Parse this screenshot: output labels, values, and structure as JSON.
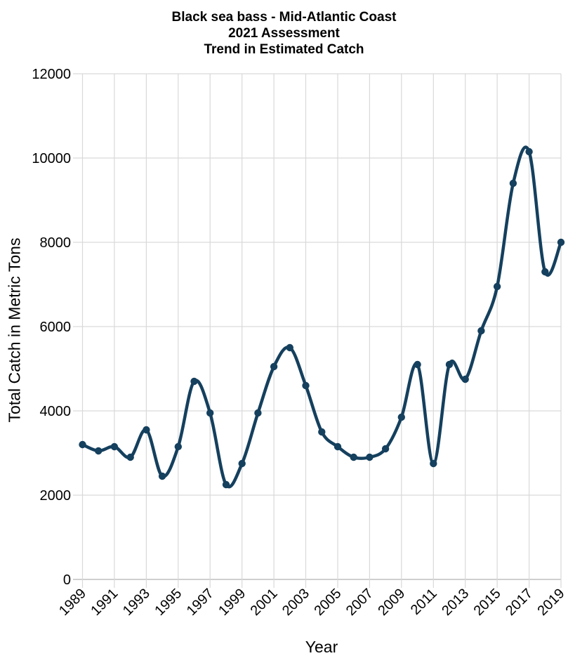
{
  "chart_data": {
    "type": "line",
    "title_lines": [
      "Black sea bass - Mid-Atlantic Coast",
      "2021 Assessment",
      "Trend in Estimated Catch"
    ],
    "xlabel": "Year",
    "ylabel": "Total Catch in Metric Tons",
    "x": [
      1989,
      1990,
      1991,
      1992,
      1993,
      1994,
      1995,
      1996,
      1997,
      1998,
      1999,
      2000,
      2001,
      2002,
      2003,
      2004,
      2005,
      2006,
      2007,
      2008,
      2009,
      2010,
      2011,
      2012,
      2013,
      2014,
      2015,
      2016,
      2017,
      2018,
      2019
    ],
    "values": [
      3200,
      3050,
      3150,
      2900,
      3550,
      2450,
      3150,
      4700,
      3950,
      2250,
      2750,
      3950,
      5050,
      5500,
      4600,
      3500,
      3150,
      2900,
      2900,
      3100,
      3850,
      5100,
      2750,
      5100,
      4750,
      5900,
      6950,
      9400,
      10150,
      7300,
      8000
    ],
    "ylim": [
      0,
      12000
    ],
    "y_ticks": [
      0,
      2000,
      4000,
      6000,
      8000,
      10000,
      12000
    ],
    "x_tick_labels": [
      "1989",
      "1991",
      "1993",
      "1995",
      "1997",
      "1999",
      "2001",
      "2003",
      "2005",
      "2007",
      "2009",
      "2011",
      "2013",
      "2015",
      "2017",
      "2019"
    ],
    "grid": true,
    "legend": "none",
    "smooth": true,
    "marker": "circle",
    "colors": {
      "line": "#15405e",
      "grid": "#d9d9d9",
      "axis": "#bfbfbf",
      "text": "#000000"
    }
  }
}
